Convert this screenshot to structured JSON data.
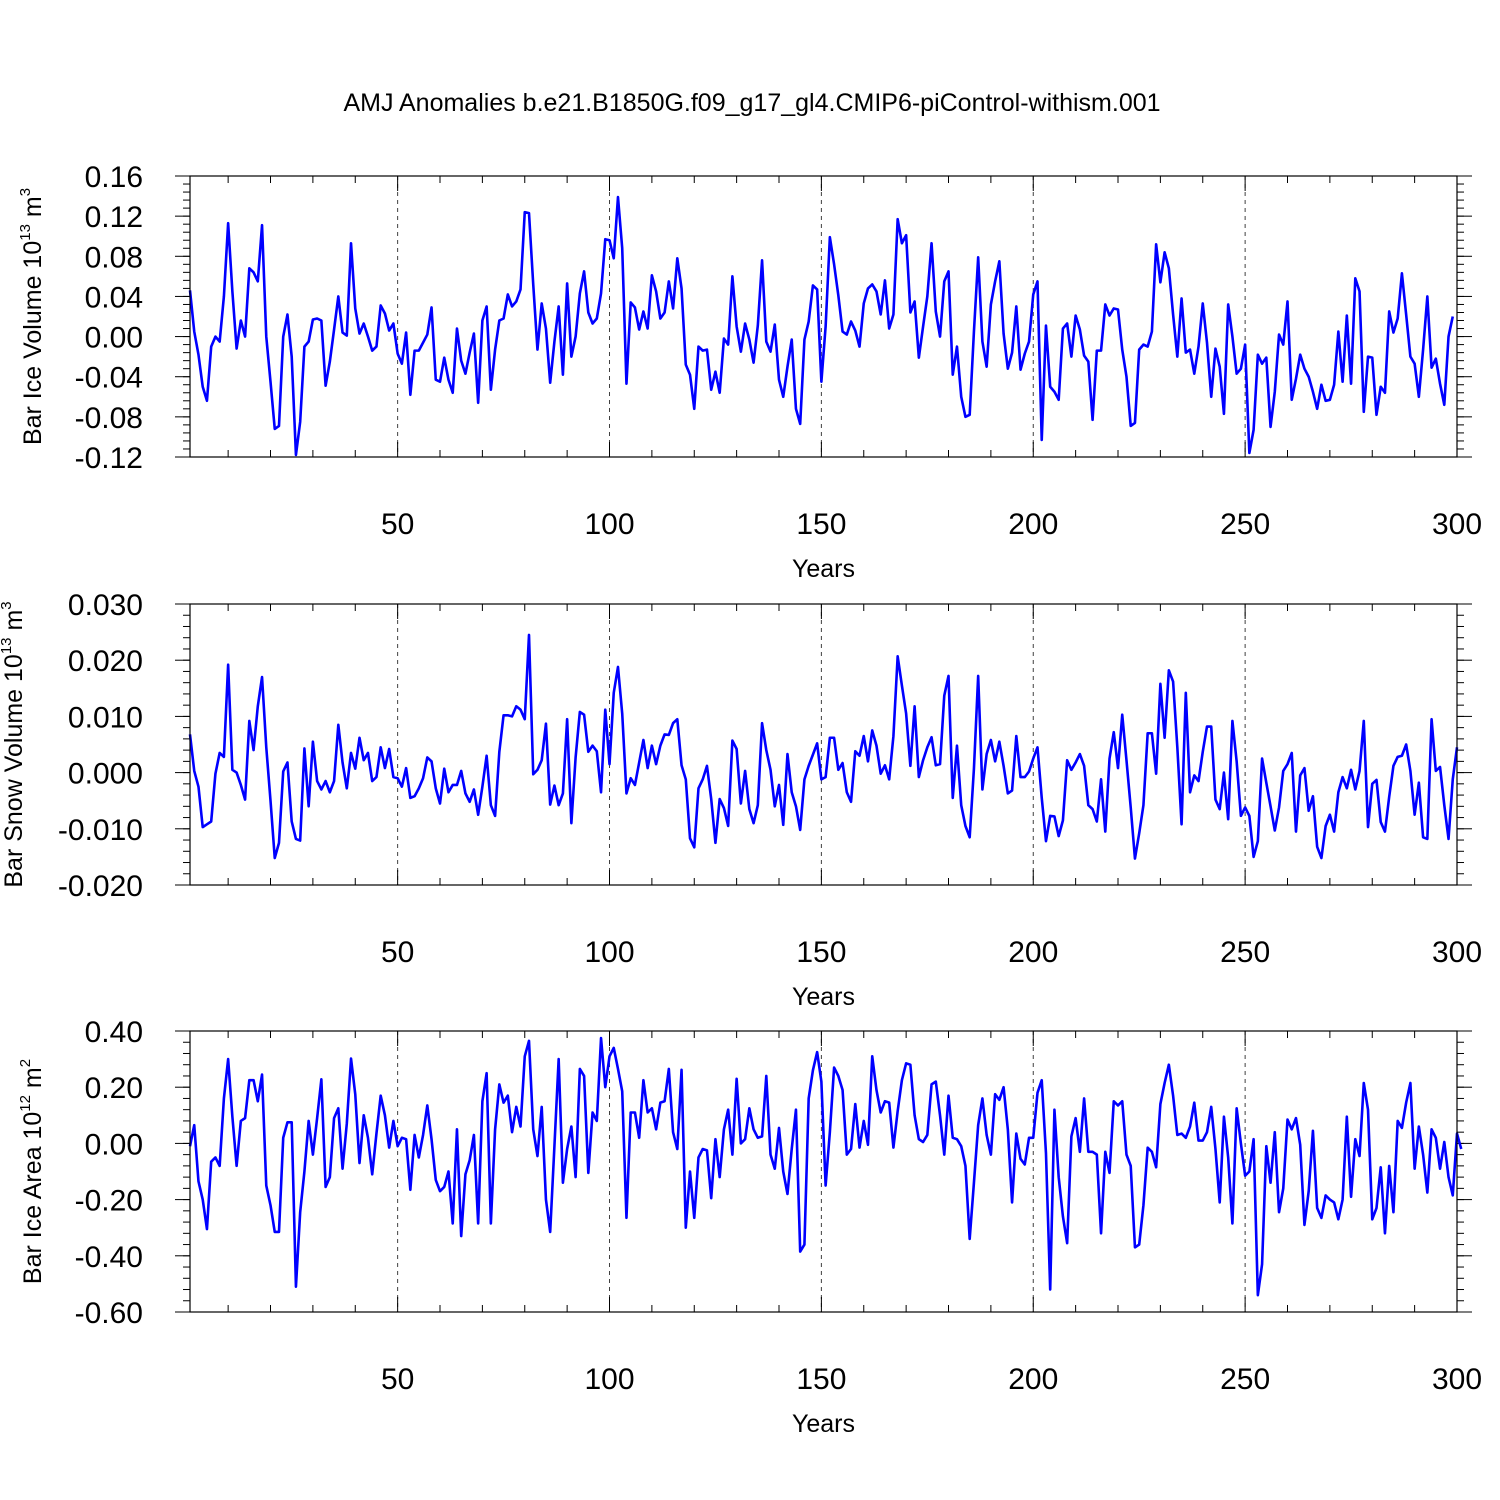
{
  "title": "AMJ Anomalies b.e21.B1850G.f09_g17_gl4.CMIP6-piControl-withism.001",
  "colors": {
    "series": "#0000ff",
    "axis": "#000000",
    "grid": "#000000"
  },
  "chart_data": [
    {
      "type": "line",
      "ylabel": "Bar Ice Volume 10",
      "ylabel_exp": "13",
      "ylabel_unit": "m",
      "ylabel_unit_exp": "3",
      "xlabel": "Years",
      "xlim": [
        1,
        300
      ],
      "ylim": [
        -0.12,
        0.16
      ],
      "ytick_values": [
        -0.12,
        -0.08,
        -0.04,
        0.0,
        0.04,
        0.08,
        0.12,
        0.16
      ],
      "ytick_labels": [
        "-0.12",
        "-0.08",
        "-0.04",
        "0.00",
        "0.04",
        "0.08",
        "0.12",
        "0.16"
      ],
      "xtick_values": [
        50,
        100,
        150,
        200,
        250,
        300
      ],
      "xtick_labels": [
        "50",
        "100",
        "150",
        "200",
        "250",
        "300"
      ],
      "values": [
        0.046,
        0.005,
        -0.018,
        -0.05,
        -0.064,
        -0.01,
        0.0,
        -0.005,
        0.04,
        0.113,
        0.045,
        -0.012,
        0.016,
        0.0,
        0.068,
        0.064,
        0.055,
        0.111,
        0.0,
        -0.045,
        -0.092,
        -0.089,
        0.0,
        0.022,
        -0.02,
        -0.118,
        -0.085,
        -0.01,
        -0.005,
        0.017,
        0.018,
        0.016,
        -0.049,
        -0.025,
        0.007,
        0.04,
        0.004,
        0.001,
        0.093,
        0.028,
        0.003,
        0.013,
        0.0,
        -0.014,
        -0.01,
        0.031,
        0.023,
        0.006,
        0.013,
        -0.017,
        -0.027,
        0.004,
        -0.058,
        -0.014,
        -0.014,
        -0.006,
        0.002,
        0.029,
        -0.043,
        -0.045,
        -0.021,
        -0.043,
        -0.056,
        0.008,
        -0.024,
        -0.037,
        -0.016,
        0.003,
        -0.066,
        0.016,
        0.03,
        -0.053,
        -0.013,
        0.016,
        0.018,
        0.042,
        0.03,
        0.035,
        0.047,
        0.124,
        0.123,
        0.052,
        -0.013,
        0.033,
        0.008,
        -0.046,
        -0.005,
        0.03,
        -0.038,
        0.053,
        -0.02,
        0.0,
        0.043,
        0.065,
        0.024,
        0.013,
        0.018,
        0.043,
        0.097,
        0.096,
        0.078,
        0.139,
        0.088,
        -0.047,
        0.034,
        0.029,
        0.007,
        0.025,
        0.008,
        0.061,
        0.045,
        0.018,
        0.024,
        0.055,
        0.028,
        0.078,
        0.048,
        -0.028,
        -0.038,
        -0.072,
        -0.01,
        -0.014,
        -0.013,
        -0.053,
        -0.035,
        -0.056,
        -0.002,
        -0.008,
        0.06,
        0.01,
        -0.015,
        0.013,
        -0.003,
        -0.026,
        0.011,
        0.076,
        -0.005,
        -0.015,
        0.012,
        -0.043,
        -0.06,
        -0.03,
        -0.003,
        -0.072,
        -0.087,
        -0.003,
        0.015,
        0.051,
        0.047,
        -0.045,
        0.01,
        0.099,
        0.072,
        0.041,
        0.005,
        0.002,
        0.015,
        0.006,
        -0.01,
        0.033,
        0.048,
        0.052,
        0.045,
        0.022,
        0.056,
        0.008,
        0.022,
        0.117,
        0.093,
        0.101,
        0.024,
        0.035,
        -0.021,
        0.01,
        0.04,
        0.093,
        0.025,
        0.0,
        0.055,
        0.065,
        -0.038,
        -0.01,
        -0.06,
        -0.08,
        -0.078,
        0.005,
        0.079,
        -0.005,
        -0.03,
        0.032,
        0.055,
        0.075,
        0.003,
        -0.032,
        -0.016,
        0.03,
        -0.033,
        -0.017,
        -0.005,
        0.042,
        0.055,
        -0.103,
        0.011,
        -0.05,
        -0.055,
        -0.063,
        0.008,
        0.013,
        -0.02,
        0.021,
        0.007,
        -0.019,
        -0.025,
        -0.083,
        -0.014,
        -0.014,
        0.032,
        0.021,
        0.028,
        0.027,
        -0.013,
        -0.04,
        -0.089,
        -0.086,
        -0.013,
        -0.008,
        -0.01,
        0.005,
        0.092,
        0.054,
        0.084,
        0.068,
        0.022,
        -0.02,
        0.038,
        -0.016,
        -0.013,
        -0.037,
        -0.01,
        0.033,
        -0.006,
        -0.06,
        -0.012,
        -0.03,
        -0.077,
        0.032,
        0.0,
        -0.037,
        -0.032,
        -0.008,
        -0.116,
        -0.093,
        -0.018,
        -0.027,
        -0.021,
        -0.09,
        -0.055,
        0.002,
        -0.008,
        0.035,
        -0.063,
        -0.042,
        -0.018,
        -0.032,
        -0.04,
        -0.055,
        -0.072,
        -0.048,
        -0.064,
        -0.063,
        -0.048,
        0.005,
        -0.045,
        0.021,
        -0.047,
        0.058,
        0.045,
        -0.075,
        -0.02,
        -0.021,
        -0.078,
        -0.05,
        -0.056,
        0.025,
        0.004,
        0.018,
        0.063,
        0.022,
        -0.02,
        -0.027,
        -0.06,
        -0.013,
        0.04,
        -0.031,
        -0.022,
        -0.047,
        -0.068,
        0.0,
        0.02
      ]
    },
    {
      "type": "line",
      "ylabel": "Bar Snow Volume 10",
      "ylabel_exp": "13",
      "ylabel_unit": "m",
      "ylabel_unit_exp": "3",
      "xlabel": "Years",
      "xlim": [
        1,
        300
      ],
      "ylim": [
        -0.02,
        0.03
      ],
      "ytick_values": [
        -0.02,
        -0.01,
        0.0,
        0.01,
        0.02,
        0.03
      ],
      "ytick_labels": [
        "-0.020",
        "-0.010",
        "0.000",
        "0.010",
        "0.020",
        "0.030"
      ],
      "xtick_values": [
        50,
        100,
        150,
        200,
        250,
        300
      ],
      "xtick_labels": [
        "50",
        "100",
        "150",
        "200",
        "250",
        "300"
      ],
      "values": [
        0.0068,
        0.0003,
        -0.0025,
        -0.0097,
        -0.0092,
        -0.0087,
        -0.0002,
        0.0035,
        0.0028,
        0.0192,
        0.0005,
        0.0,
        -0.0022,
        -0.0048,
        0.0092,
        0.004,
        0.0118,
        0.017,
        0.0045,
        -0.005,
        -0.0152,
        -0.0125,
        0.0002,
        0.0018,
        -0.0087,
        -0.0118,
        -0.0121,
        0.0043,
        -0.006,
        0.0055,
        -0.0015,
        -0.003,
        -0.0015,
        -0.0035,
        -0.0015,
        0.0085,
        0.0018,
        -0.0028,
        0.0035,
        0.0007,
        0.0062,
        0.0022,
        0.0035,
        -0.0015,
        -0.0008,
        0.0045,
        0.0008,
        0.0042,
        -0.0008,
        -0.001,
        -0.0025,
        0.0008,
        -0.0045,
        -0.0042,
        -0.0028,
        -0.001,
        0.0027,
        0.002,
        -0.0028,
        -0.0055,
        0.0007,
        -0.0035,
        -0.0022,
        -0.0022,
        0.0003,
        -0.0037,
        -0.0052,
        -0.003,
        -0.0075,
        -0.0025,
        0.003,
        -0.0058,
        -0.0077,
        0.0037,
        0.0102,
        0.0102,
        0.01,
        0.0118,
        0.0112,
        0.0095,
        0.0245,
        -0.0003,
        0.0005,
        0.0022,
        0.0087,
        -0.0057,
        -0.0023,
        -0.0058,
        -0.0037,
        0.0095,
        -0.009,
        0.0027,
        0.0108,
        0.0103,
        0.0037,
        0.0048,
        0.0038,
        -0.0035,
        0.0112,
        0.0015,
        0.0142,
        0.0188,
        0.0105,
        -0.0037,
        -0.001,
        -0.0022,
        0.0018,
        0.0058,
        0.0008,
        0.0048,
        0.0015,
        0.0048,
        0.0068,
        0.0067,
        0.0088,
        0.0095,
        0.0013,
        -0.0012,
        -0.0117,
        -0.0133,
        -0.0028,
        -0.0012,
        0.0012,
        -0.0047,
        -0.0125,
        -0.0047,
        -0.0063,
        -0.0095,
        0.0057,
        0.0042,
        -0.0055,
        0.0003,
        -0.0065,
        -0.009,
        -0.0058,
        0.0088,
        0.004,
        0.0005,
        -0.006,
        -0.0022,
        -0.0093,
        0.0033,
        -0.0035,
        -0.006,
        -0.0102,
        -0.0012,
        0.0012,
        0.0032,
        0.0052,
        -0.0012,
        -0.0008,
        0.0062,
        0.0062,
        0.0005,
        0.0017,
        -0.0035,
        -0.0052,
        0.0038,
        0.003,
        0.0065,
        0.002,
        0.0075,
        0.0048,
        -0.0002,
        0.0013,
        -0.0012,
        0.0065,
        0.0207,
        0.0155,
        0.0105,
        0.0012,
        0.0118,
        -0.0008,
        0.0022,
        0.0045,
        0.0063,
        0.0013,
        0.0015,
        0.0137,
        0.0172,
        -0.0045,
        0.0048,
        -0.0058,
        -0.0095,
        -0.0115,
        0.0007,
        0.0172,
        -0.003,
        0.0033,
        0.0058,
        0.002,
        0.0055,
        0.0012,
        -0.0037,
        -0.0032,
        0.0065,
        -0.0008,
        -0.0008,
        0.0002,
        0.0025,
        0.0045,
        -0.0045,
        -0.0122,
        -0.0077,
        -0.0078,
        -0.0113,
        -0.0085,
        0.0022,
        0.0005,
        0.0018,
        0.0033,
        0.0012,
        -0.0058,
        -0.0065,
        -0.0087,
        -0.0012,
        -0.0105,
        0.0025,
        0.0072,
        0.0008,
        0.0103,
        0.0022,
        -0.0062,
        -0.0153,
        -0.0108,
        -0.0058,
        0.007,
        0.007,
        -0.0002,
        0.0158,
        0.0062,
        0.0182,
        0.0162,
        0.0045,
        -0.0092,
        0.0142,
        -0.0035,
        -0.0005,
        -0.0015,
        0.0037,
        0.0082,
        0.0082,
        -0.0048,
        -0.0065,
        0.0,
        -0.0083,
        0.0092,
        0.002,
        -0.0077,
        -0.0062,
        -0.0077,
        -0.015,
        -0.0122,
        0.0025,
        -0.0018,
        -0.006,
        -0.0103,
        -0.0062,
        0.0003,
        0.0015,
        0.0035,
        -0.0105,
        -0.0005,
        0.0008,
        -0.0068,
        -0.0042,
        -0.0132,
        -0.0152,
        -0.0095,
        -0.0075,
        -0.0105,
        -0.0035,
        -0.0008,
        -0.0028,
        0.0005,
        -0.003,
        0.0003,
        0.0092,
        -0.0097,
        -0.002,
        -0.0013,
        -0.0088,
        -0.0105,
        -0.0043,
        0.0012,
        0.0028,
        0.003,
        0.005,
        0.0003,
        -0.0075,
        -0.0018,
        -0.0115,
        -0.0118,
        0.0095,
        0.0003,
        0.001,
        -0.0058,
        -0.0118,
        -0.0012,
        0.0045
      ]
    },
    {
      "type": "line",
      "ylabel": "Bar Ice Area 10",
      "ylabel_exp": "12",
      "ylabel_unit": "m",
      "ylabel_unit_exp": "2",
      "xlabel": "Years",
      "xlim": [
        1,
        300
      ],
      "ylim": [
        -0.6,
        0.4
      ],
      "ytick_values": [
        -0.6,
        -0.4,
        -0.2,
        0.0,
        0.2,
        0.4
      ],
      "ytick_labels": [
        "-0.60",
        "-0.40",
        "-0.20",
        "0.00",
        "0.20",
        "0.40"
      ],
      "xtick_values": [
        50,
        100,
        150,
        200,
        250,
        300
      ],
      "xtick_labels": [
        "50",
        "100",
        "150",
        "200",
        "250",
        "300"
      ],
      "values": [
        -0.01,
        0.065,
        -0.135,
        -0.2,
        -0.305,
        -0.065,
        -0.05,
        -0.08,
        0.16,
        0.3,
        0.095,
        -0.08,
        0.08,
        0.09,
        0.225,
        0.225,
        0.15,
        0.245,
        -0.15,
        -0.22,
        -0.315,
        -0.315,
        0.02,
        0.075,
        0.075,
        -0.51,
        -0.245,
        -0.1,
        0.08,
        -0.04,
        0.09,
        0.228,
        -0.155,
        -0.12,
        0.09,
        0.125,
        -0.09,
        0.07,
        0.302,
        0.175,
        -0.07,
        0.1,
        0.02,
        -0.11,
        0.035,
        0.17,
        0.1,
        -0.015,
        0.08,
        -0.01,
        0.02,
        0.015,
        -0.165,
        0.03,
        -0.05,
        0.03,
        0.135,
        0.015,
        -0.13,
        -0.17,
        -0.155,
        -0.1,
        -0.285,
        0.05,
        -0.33,
        -0.11,
        -0.06,
        0.03,
        -0.285,
        0.15,
        0.25,
        -0.285,
        0.05,
        0.21,
        0.145,
        0.17,
        0.04,
        0.13,
        0.06,
        0.31,
        0.365,
        0.05,
        -0.045,
        0.13,
        -0.2,
        -0.315,
        -0.01,
        0.3,
        -0.14,
        -0.02,
        0.06,
        -0.12,
        0.265,
        0.24,
        -0.105,
        0.11,
        0.08,
        0.375,
        0.2,
        0.31,
        0.34,
        0.265,
        0.185,
        -0.265,
        0.11,
        0.11,
        0.02,
        0.225,
        0.11,
        0.125,
        0.05,
        0.145,
        0.15,
        0.265,
        0.04,
        -0.02,
        0.262,
        -0.3,
        -0.1,
        -0.265,
        -0.05,
        -0.02,
        -0.025,
        -0.195,
        0.015,
        -0.12,
        0.05,
        0.12,
        -0.04,
        0.23,
        0.0,
        0.015,
        0.125,
        0.05,
        0.02,
        0.025,
        0.24,
        -0.04,
        -0.09,
        0.055,
        -0.1,
        -0.18,
        -0.02,
        0.12,
        -0.385,
        -0.36,
        0.16,
        0.26,
        0.325,
        0.22,
        -0.15,
        0.04,
        0.27,
        0.24,
        0.19,
        -0.04,
        -0.02,
        0.14,
        -0.015,
        0.08,
        -0.005,
        0.31,
        0.19,
        0.11,
        0.15,
        0.145,
        -0.015,
        0.115,
        0.225,
        0.285,
        0.28,
        0.1,
        0.015,
        0.005,
        0.03,
        0.21,
        0.22,
        0.1,
        -0.04,
        0.17,
        0.02,
        0.015,
        -0.01,
        -0.08,
        -0.34,
        -0.14,
        0.065,
        0.16,
        0.03,
        -0.04,
        0.175,
        0.155,
        0.2,
        0.05,
        -0.21,
        0.035,
        -0.055,
        -0.075,
        0.02,
        0.02,
        0.18,
        0.225,
        -0.035,
        -0.52,
        0.12,
        -0.12,
        -0.26,
        -0.355,
        0.025,
        0.09,
        -0.03,
        0.16,
        -0.03,
        -0.03,
        -0.04,
        -0.32,
        -0.03,
        -0.105,
        0.15,
        0.135,
        0.15,
        -0.04,
        -0.08,
        -0.37,
        -0.36,
        -0.22,
        -0.015,
        -0.03,
        -0.085,
        0.14,
        0.215,
        0.28,
        0.17,
        0.03,
        0.035,
        0.02,
        0.06,
        0.145,
        0.01,
        0.01,
        0.04,
        0.13,
        -0.02,
        -0.21,
        0.095,
        -0.05,
        -0.285,
        0.125,
        0.0,
        -0.115,
        -0.1,
        0.015,
        -0.54,
        -0.43,
        -0.01,
        -0.14,
        0.04,
        -0.245,
        -0.16,
        0.085,
        0.05,
        0.09,
        -0.005,
        -0.29,
        -0.17,
        0.045,
        -0.23,
        -0.265,
        -0.185,
        -0.2,
        -0.21,
        -0.27,
        -0.2,
        0.095,
        -0.19,
        0.015,
        -0.045,
        0.215,
        0.12,
        -0.27,
        -0.23,
        -0.085,
        -0.32,
        -0.08,
        -0.245,
        0.08,
        0.055,
        0.145,
        0.215,
        -0.09,
        0.06,
        -0.04,
        -0.175,
        0.05,
        0.02,
        -0.09,
        0.005,
        -0.12,
        -0.185,
        0.035,
        -0.02
      ]
    }
  ]
}
